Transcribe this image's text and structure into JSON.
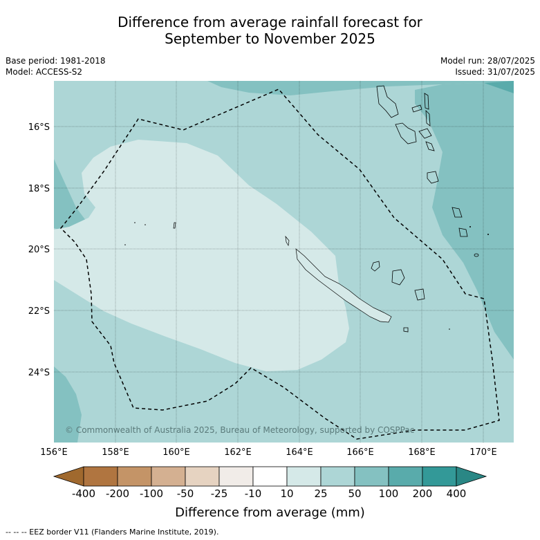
{
  "title_line1": "Difference from average rainfall forecast for",
  "title_line2": "September to November 2025",
  "base_period": "Base period: 1981-2018",
  "model": "Model: ACCESS-S2",
  "model_run": "Model run: 28/07/2025",
  "issued": "Issued: 31/07/2025",
  "copyright": "© Commonwealth of Australia 2025, Bureau of Meteorology, supported by COSPPac",
  "lat_ticks": [
    "16°S",
    "18°S",
    "20°S",
    "22°S",
    "24°S"
  ],
  "lon_ticks": [
    "156°E",
    "158°E",
    "160°E",
    "162°E",
    "164°E",
    "166°E",
    "168°E",
    "170°E"
  ],
  "colorbar": {
    "ticks": [
      "-400",
      "-200",
      "-100",
      "-50",
      "-25",
      "-10",
      "10",
      "25",
      "50",
      "100",
      "200",
      "400"
    ],
    "colors": [
      "#a0692e",
      "#b07540",
      "#c49467",
      "#d4b091",
      "#e6d3c1",
      "#f1ece8",
      "#ffffff",
      "#d5e9e8",
      "#add6d6",
      "#84c1c1",
      "#59abab",
      "#339998",
      "#2a8785"
    ],
    "label": "Difference from average (mm)"
  },
  "footer": "--  --  -- EEZ border V11 (Flanders Marine Institute, 2019)."
}
